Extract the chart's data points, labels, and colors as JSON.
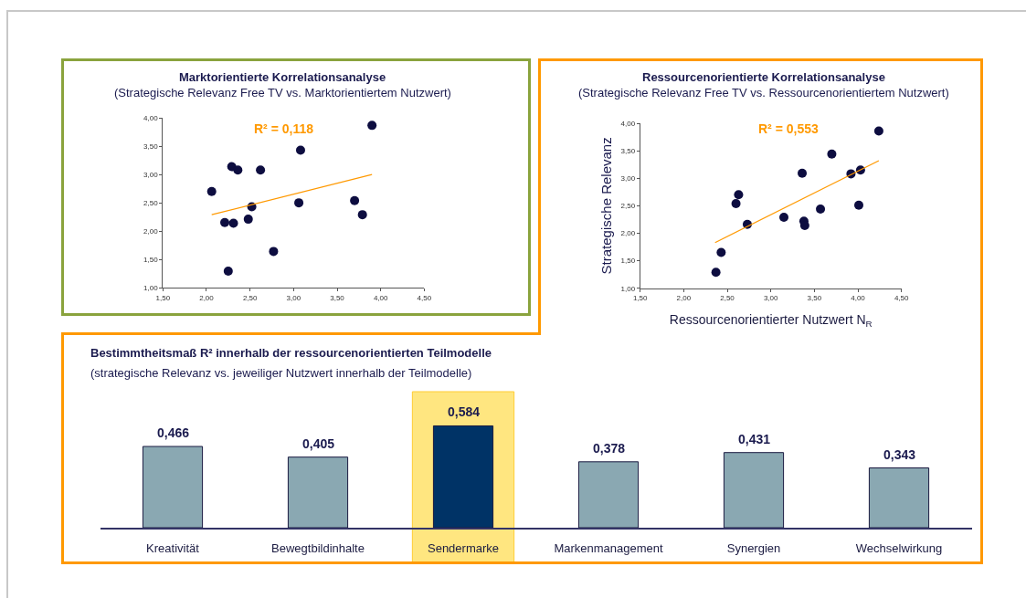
{
  "chart_data": [
    {
      "type": "scatter",
      "title": "Marktorientierte Korrelationsanalyse",
      "subtitle": "(Strategische Relevanz Free TV vs. Marktorientiertem Nutzwert)",
      "annotations": [
        "R² = 0,118"
      ],
      "series": [
        {
          "color": "#0d0d40",
          "marker": "circle",
          "x": [
            2.06,
            2.29,
            2.36,
            2.62,
            3.08,
            3.9,
            2.21,
            2.31,
            2.48,
            2.52,
            3.06,
            3.7,
            3.79,
            2.77,
            2.25
          ],
          "values": [
            2.7,
            3.14,
            3.08,
            3.08,
            3.43,
            3.87,
            2.15,
            2.14,
            2.21,
            2.43,
            2.5,
            2.54,
            2.29,
            1.64,
            1.29
          ]
        },
        {
          "type": "line",
          "color": "#ff9900",
          "marker": "none",
          "x": [
            2.06,
            3.9
          ],
          "values": [
            2.29,
            3.0
          ]
        }
      ],
      "xlim": [
        1.5,
        4.5
      ],
      "xticks": [
        {
          "value": 1.5,
          "label": "1,50"
        },
        {
          "value": 2.0,
          "label": "2,00"
        },
        {
          "value": 2.5,
          "label": "2,50"
        },
        {
          "value": 3.0,
          "label": "3,00"
        },
        {
          "value": 3.5,
          "label": "3,50"
        },
        {
          "value": 4.0,
          "label": "4,00"
        },
        {
          "value": 4.5,
          "label": "4,50"
        }
      ],
      "ylim": [
        1,
        4
      ],
      "yticks": [
        {
          "value": 1.0,
          "label": "1,00"
        },
        {
          "value": 1.5,
          "label": "1,50"
        },
        {
          "value": 2.0,
          "label": "2,00"
        },
        {
          "value": 2.5,
          "label": "2,50"
        },
        {
          "value": 3.0,
          "label": "3,00"
        },
        {
          "value": 3.5,
          "label": "3,50"
        },
        {
          "value": 4.0,
          "label": "4,00"
        }
      ]
    },
    {
      "type": "scatter",
      "title": "Ressourcenorientierte Korrelationsanalyse",
      "subtitle": "(Strategische Relevanz Free TV vs. Ressourcenorientiertem Nutzwert)",
      "xlabel": "Ressourcenorientierter Nutzwert N$_{R}$",
      "ylabel": "Strategische Relevanz",
      "annotations": [
        "R² = 0,553"
      ],
      "series": [
        {
          "color": "#0d0d40",
          "marker": "circle",
          "x": [
            4.24,
            3.7,
            3.36,
            3.92,
            4.03,
            2.63,
            2.6,
            4.01,
            3.57,
            3.15,
            3.38,
            3.39,
            2.73,
            2.43,
            2.37
          ],
          "values": [
            3.86,
            3.44,
            3.09,
            3.08,
            3.15,
            2.7,
            2.54,
            2.51,
            2.44,
            2.29,
            2.22,
            2.14,
            2.16,
            1.65,
            1.29
          ]
        },
        {
          "type": "line",
          "color": "#ff9900",
          "marker": "none",
          "x": [
            2.36,
            4.24
          ],
          "values": [
            1.83,
            3.32
          ]
        }
      ],
      "xlim": [
        1.5,
        4.5
      ],
      "xticks": [
        {
          "value": 1.5,
          "label": "1,50"
        },
        {
          "value": 2.0,
          "label": "2,00"
        },
        {
          "value": 2.5,
          "label": "2,50"
        },
        {
          "value": 3.0,
          "label": "3,00"
        },
        {
          "value": 3.5,
          "label": "3,50"
        },
        {
          "value": 4.0,
          "label": "4,00"
        },
        {
          "value": 4.5,
          "label": "4,50"
        }
      ],
      "ylim": [
        1,
        4
      ],
      "yticks": [
        {
          "value": 1.0,
          "label": "1,00"
        },
        {
          "value": 1.5,
          "label": "1,50"
        },
        {
          "value": 2.0,
          "label": "2,00"
        },
        {
          "value": 2.5,
          "label": "2,50"
        },
        {
          "value": 3.0,
          "label": "3,00"
        },
        {
          "value": 3.5,
          "label": "3,50"
        },
        {
          "value": 4.0,
          "label": "4,00"
        }
      ]
    },
    {
      "type": "bar",
      "title": "Bestimmtheitsmaß R² innerhalb der ressourcenorientierten Teilmodelle",
      "subtitle": "(strategische Relevanz vs. jeweiliger Nutzwert innerhalb der Teilmodelle)",
      "categories": [
        "Kreativität",
        "Bewegtbildinhalte",
        "Sendermarke",
        "Markenmanagement",
        "Synergien",
        "Wechselwirkung"
      ],
      "values": [
        0.466,
        0.405,
        0.584,
        0.378,
        0.431,
        0.343
      ],
      "value_labels": [
        "0,466",
        "0,405",
        "0,584",
        "0,378",
        "0,431",
        "0,343"
      ],
      "colors": [
        "#8aa8b2",
        "#8aa8b2",
        "#003366",
        "#8aa8b2",
        "#8aa8b2",
        "#8aa8b2"
      ],
      "bands": [
        {
          "axis": "x",
          "from": "Sendermarke",
          "to": "Sendermarke",
          "color": "#ffe680"
        }
      ]
    }
  ]
}
